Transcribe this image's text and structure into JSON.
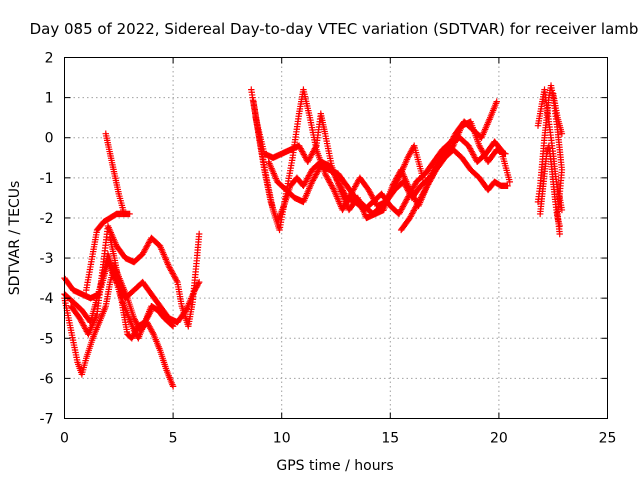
{
  "chart_data": {
    "type": "scatter",
    "title": "Day 085 of 2022, Sidereal Day-to-day VTEC variation (SDTVAR) for receiver lamb",
    "xlabel": "GPS time / hours",
    "ylabel": "SDTVAR / TECUs",
    "xlim": [
      0,
      25
    ],
    "ylim": [
      -7,
      2
    ],
    "xticks": [
      0,
      5,
      10,
      15,
      20,
      25
    ],
    "xtick_labels": [
      "0",
      "5",
      "10",
      "15",
      "20",
      "25"
    ],
    "yticks": [
      -7,
      -6,
      -5,
      -4,
      -3,
      -2,
      -1,
      0,
      1,
      2
    ],
    "ytick_labels": [
      "-7",
      "-6",
      "-5",
      "-4",
      "-3",
      "-2",
      "-1",
      "0",
      "1",
      "2"
    ],
    "grid": true,
    "marker": "+",
    "color": "#ff0000",
    "series": [
      {
        "segments": [
          [
            [
              0.0,
              -4.0
            ],
            [
              0.3,
              -4.8
            ],
            [
              0.6,
              -5.6
            ],
            [
              0.8,
              -5.9
            ],
            [
              1.0,
              -5.5
            ],
            [
              1.3,
              -5.0
            ],
            [
              1.6,
              -4.6
            ],
            [
              1.9,
              -4.2
            ],
            [
              2.1,
              -3.6
            ],
            [
              2.3,
              -3.2
            ],
            [
              2.6,
              -3.6
            ],
            [
              2.9,
              -4.0
            ],
            [
              3.2,
              -4.5
            ],
            [
              3.5,
              -4.8
            ],
            [
              3.8,
              -4.6
            ],
            [
              4.1,
              -4.9
            ],
            [
              4.4,
              -5.3
            ],
            [
              4.7,
              -5.8
            ],
            [
              5.0,
              -6.2
            ]
          ],
          [
            [
              0.0,
              -3.9
            ],
            [
              0.4,
              -4.1
            ],
            [
              0.8,
              -4.3
            ],
            [
              1.2,
              -4.6
            ],
            [
              1.5,
              -4.0
            ],
            [
              1.8,
              -3.4
            ],
            [
              2.0,
              -2.9
            ],
            [
              2.3,
              -3.4
            ],
            [
              2.6,
              -4.0
            ],
            [
              2.9,
              -4.4
            ],
            [
              3.2,
              -4.8
            ],
            [
              3.4,
              -5.0
            ],
            [
              3.7,
              -4.6
            ],
            [
              4.0,
              -4.2
            ],
            [
              4.3,
              -4.3
            ],
            [
              4.6,
              -4.5
            ],
            [
              5.0,
              -4.7
            ]
          ],
          [
            [
              0.0,
              -3.5
            ],
            [
              0.4,
              -3.8
            ],
            [
              0.8,
              -3.9
            ],
            [
              1.2,
              -4.0
            ],
            [
              1.6,
              -3.9
            ],
            [
              2.0,
              -3.1
            ],
            [
              2.4,
              -3.6
            ],
            [
              2.8,
              -4.0
            ],
            [
              3.2,
              -3.8
            ],
            [
              3.6,
              -3.6
            ],
            [
              4.0,
              -3.9
            ],
            [
              4.4,
              -4.2
            ],
            [
              4.8,
              -4.5
            ],
            [
              5.2,
              -4.6
            ],
            [
              5.6,
              -4.3
            ],
            [
              6.0,
              -3.8
            ],
            [
              6.2,
              -3.6
            ]
          ],
          [
            [
              0.3,
              -4.2
            ],
            [
              0.7,
              -4.5
            ],
            [
              1.1,
              -4.9
            ],
            [
              1.5,
              -4.4
            ],
            [
              2.0,
              -2.2
            ],
            [
              2.4,
              -2.7
            ],
            [
              2.8,
              -3.0
            ],
            [
              3.2,
              -3.1
            ],
            [
              3.6,
              -2.9
            ],
            [
              4.0,
              -2.5
            ],
            [
              4.4,
              -2.7
            ],
            [
              4.8,
              -3.2
            ],
            [
              5.2,
              -3.6
            ],
            [
              5.4,
              -4.2
            ],
            [
              5.7,
              -4.7
            ],
            [
              5.9,
              -4.1
            ],
            [
              6.1,
              -3.0
            ],
            [
              6.2,
              -2.4
            ]
          ],
          [
            [
              1.0,
              -3.8
            ],
            [
              1.3,
              -2.9
            ],
            [
              1.5,
              -2.3
            ],
            [
              1.8,
              -2.1
            ],
            [
              2.1,
              -2.0
            ],
            [
              2.4,
              -1.9
            ],
            [
              2.7,
              -1.9
            ],
            [
              3.0,
              -1.9
            ]
          ],
          [
            [
              1.9,
              0.1
            ],
            [
              2.1,
              -0.4
            ],
            [
              2.3,
              -0.9
            ],
            [
              2.5,
              -1.4
            ],
            [
              2.7,
              -1.8
            ]
          ],
          [
            [
              2.1,
              -2.5
            ],
            [
              2.3,
              -3.0
            ],
            [
              2.5,
              -3.6
            ],
            [
              2.7,
              -4.3
            ],
            [
              2.9,
              -4.9
            ],
            [
              3.1,
              -5.0
            ],
            [
              3.4,
              -4.7
            ],
            [
              3.7,
              -4.6
            ],
            [
              4.0,
              -4.3
            ]
          ]
        ]
      },
      {
        "segments": [
          [
            [
              8.6,
              1.2
            ],
            [
              8.9,
              0.2
            ],
            [
              9.2,
              -0.8
            ],
            [
              9.5,
              -1.6
            ],
            [
              9.8,
              -2.1
            ],
            [
              10.1,
              -1.7
            ],
            [
              10.4,
              -1.2
            ],
            [
              10.7,
              -1.0
            ],
            [
              11.0,
              -1.2
            ],
            [
              11.4,
              -0.8
            ],
            [
              11.8,
              -0.6
            ],
            [
              12.2,
              -0.7
            ],
            [
              12.6,
              -1.1
            ],
            [
              13.0,
              -1.5
            ],
            [
              13.4,
              -1.6
            ],
            [
              13.8,
              -1.8
            ],
            [
              14.2,
              -1.6
            ],
            [
              14.6,
              -1.4
            ],
            [
              15.0,
              -1.7
            ],
            [
              15.4,
              -1.9
            ],
            [
              15.8,
              -1.5
            ],
            [
              16.2,
              -1.1
            ],
            [
              16.6,
              -0.9
            ],
            [
              17.0,
              -0.6
            ],
            [
              17.4,
              -0.3
            ],
            [
              17.8,
              -0.1
            ],
            [
              18.2,
              0.0
            ],
            [
              18.6,
              -0.2
            ],
            [
              19.0,
              -0.6
            ],
            [
              19.4,
              -0.4
            ],
            [
              19.8,
              -0.1
            ],
            [
              20.1,
              -0.3
            ],
            [
              20.3,
              -0.7
            ],
            [
              20.5,
              -1.1
            ]
          ],
          [
            [
              8.7,
              0.9
            ],
            [
              9.0,
              -0.1
            ],
            [
              9.3,
              -1.0
            ],
            [
              9.6,
              -1.8
            ],
            [
              9.9,
              -2.3
            ],
            [
              10.2,
              -1.4
            ],
            [
              10.5,
              -0.5
            ],
            [
              10.8,
              0.6
            ],
            [
              11.0,
              1.2
            ],
            [
              11.3,
              0.5
            ],
            [
              11.6,
              -0.3
            ],
            [
              12.0,
              -0.9
            ],
            [
              12.4,
              -1.3
            ],
            [
              12.8,
              -1.8
            ],
            [
              13.2,
              -1.4
            ],
            [
              13.6,
              -1.0
            ],
            [
              14.0,
              -1.3
            ],
            [
              14.4,
              -1.7
            ],
            [
              14.8,
              -1.6
            ],
            [
              15.2,
              -1.3
            ],
            [
              15.6,
              -1.1
            ],
            [
              16.0,
              -1.5
            ],
            [
              16.4,
              -1.2
            ],
            [
              16.8,
              -1.0
            ],
            [
              17.2,
              -0.6
            ],
            [
              17.6,
              -0.3
            ],
            [
              18.0,
              0.1
            ],
            [
              18.4,
              0.4
            ],
            [
              18.8,
              0.2
            ],
            [
              19.2,
              0.0
            ],
            [
              19.6,
              0.5
            ],
            [
              19.9,
              0.9
            ]
          ],
          [
            [
              8.8,
              0.5
            ],
            [
              9.2,
              -0.4
            ],
            [
              9.6,
              -0.5
            ],
            [
              10.0,
              -0.4
            ],
            [
              10.4,
              -0.3
            ],
            [
              10.8,
              -0.2
            ],
            [
              11.2,
              -0.6
            ],
            [
              11.6,
              -0.2
            ],
            [
              11.8,
              0.6
            ],
            [
              12.0,
              0.1
            ],
            [
              12.3,
              -0.7
            ],
            [
              12.7,
              -1.3
            ],
            [
              13.1,
              -1.8
            ],
            [
              13.5,
              -1.5
            ],
            [
              13.9,
              -2.0
            ],
            [
              14.3,
              -1.9
            ],
            [
              14.7,
              -1.8
            ],
            [
              15.1,
              -1.2
            ],
            [
              15.5,
              -0.8
            ],
            [
              15.9,
              -1.3
            ],
            [
              16.3,
              -1.7
            ],
            [
              16.7,
              -1.2
            ],
            [
              17.1,
              -0.8
            ],
            [
              17.5,
              -0.5
            ],
            [
              17.9,
              -0.2
            ],
            [
              18.3,
              0.3
            ],
            [
              18.7,
              0.4
            ],
            [
              19.1,
              -0.2
            ],
            [
              19.5,
              -0.6
            ],
            [
              19.9,
              -0.3
            ],
            [
              20.3,
              -0.4
            ]
          ],
          [
            [
              9.4,
              -0.6
            ],
            [
              9.8,
              -1.1
            ],
            [
              10.2,
              -1.3
            ],
            [
              10.6,
              -1.5
            ],
            [
              11.0,
              -1.6
            ],
            [
              11.4,
              -1.1
            ],
            [
              11.8,
              -0.7
            ],
            [
              12.2,
              -0.8
            ],
            [
              12.6,
              -0.9
            ],
            [
              13.0,
              -1.2
            ],
            [
              13.4,
              -1.5
            ],
            [
              13.8,
              -1.7
            ],
            [
              14.2,
              -1.9
            ],
            [
              14.6,
              -1.7
            ],
            [
              15.0,
              -1.4
            ],
            [
              15.4,
              -1.0
            ],
            [
              15.8,
              -0.5
            ],
            [
              16.1,
              -0.2
            ],
            [
              16.3,
              -0.6
            ],
            [
              16.5,
              -1.0
            ]
          ],
          [
            [
              15.5,
              -2.3
            ],
            [
              15.9,
              -2.0
            ],
            [
              16.3,
              -1.6
            ],
            [
              16.7,
              -1.2
            ],
            [
              17.1,
              -0.8
            ],
            [
              17.5,
              -0.5
            ],
            [
              17.9,
              -0.3
            ],
            [
              18.3,
              -0.5
            ],
            [
              18.7,
              -0.8
            ],
            [
              19.1,
              -1.0
            ],
            [
              19.5,
              -1.3
            ],
            [
              19.8,
              -1.1
            ],
            [
              20.1,
              -1.2
            ],
            [
              20.4,
              -1.2
            ]
          ]
        ]
      },
      {
        "segments": [
          [
            [
              21.8,
              -1.6
            ],
            [
              21.9,
              -1.2
            ],
            [
              22.0,
              -0.6
            ],
            [
              22.1,
              0.0
            ],
            [
              22.2,
              0.5
            ],
            [
              22.3,
              1.0
            ],
            [
              22.4,
              1.3
            ],
            [
              22.5,
              1.0
            ],
            [
              22.6,
              0.6
            ],
            [
              22.7,
              0.2
            ],
            [
              22.8,
              -0.3
            ],
            [
              22.9,
              -0.8
            ],
            [
              22.8,
              -1.4
            ],
            [
              22.7,
              -1.9
            ],
            [
              22.8,
              -2.4
            ]
          ],
          [
            [
              21.8,
              0.3
            ],
            [
              21.9,
              0.6
            ],
            [
              22.0,
              0.9
            ],
            [
              22.1,
              1.2
            ],
            [
              22.2,
              0.8
            ],
            [
              22.3,
              0.4
            ],
            [
              22.4,
              0.0
            ],
            [
              22.5,
              -0.4
            ],
            [
              22.6,
              -0.9
            ],
            [
              22.7,
              -1.3
            ],
            [
              22.8,
              -1.5
            ],
            [
              22.9,
              -1.8
            ]
          ],
          [
            [
              21.9,
              -1.9
            ],
            [
              22.0,
              -1.4
            ],
            [
              22.1,
              -0.9
            ],
            [
              22.2,
              -0.4
            ],
            [
              22.3,
              -0.2
            ],
            [
              22.4,
              -0.6
            ],
            [
              22.5,
              -1.1
            ],
            [
              22.6,
              -1.6
            ],
            [
              22.7,
              -2.0
            ],
            [
              22.8,
              -2.2
            ]
          ],
          [
            [
              22.5,
              1.1
            ],
            [
              22.6,
              0.8
            ],
            [
              22.7,
              0.5
            ],
            [
              22.8,
              0.3
            ],
            [
              22.9,
              0.1
            ]
          ]
        ]
      }
    ]
  }
}
